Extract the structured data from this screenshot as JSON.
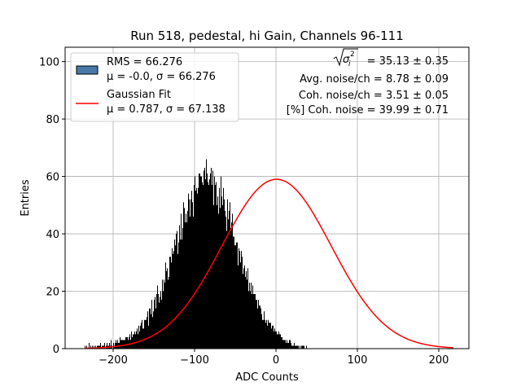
{
  "chart_data": {
    "type": "bar",
    "title": "Run 518, pedestal, hi Gain, Channels 96-111",
    "xlabel": "ADC Counts",
    "ylabel": "Entries",
    "xlim": [
      -259,
      237
    ],
    "ylim": [
      0,
      105
    ],
    "xticks": [
      -200,
      -100,
      0,
      100,
      200
    ],
    "yticks": [
      0,
      20,
      40,
      60,
      80,
      100
    ],
    "grid": true,
    "legend_position": "top-left",
    "hist": {
      "x_min": -235,
      "x_max": 218,
      "bin_width": 1,
      "color": "#000000",
      "counts": [
        1,
        0,
        1,
        0,
        0,
        2,
        0,
        1,
        0,
        1,
        0,
        1,
        0,
        1,
        0,
        1,
        1,
        1,
        1,
        2,
        0,
        1,
        1,
        1,
        2,
        0,
        1,
        2,
        1,
        1,
        2,
        1,
        3,
        1,
        0,
        2,
        1,
        2,
        3,
        2,
        3,
        2,
        2,
        4,
        3,
        3,
        3,
        3,
        3,
        3,
        4,
        4,
        4,
        3,
        4,
        5,
        3,
        6,
        4,
        5,
        5,
        6,
        5,
        6,
        7,
        5,
        8,
        6,
        8,
        9,
        10,
        7,
        7,
        10,
        10,
        10,
        11,
        13,
        8,
        14,
        14,
        12,
        17,
        11,
        13,
        17,
        18,
        14,
        19,
        22,
        19,
        16,
        18,
        20,
        17,
        24,
        20,
        24,
        23,
        30,
        27,
        28,
        24,
        25,
        32,
        32,
        30,
        35,
        33,
        34,
        38,
        36,
        40,
        41,
        33,
        37,
        43,
        38,
        47,
        38,
        42,
        51,
        49,
        44,
        47,
        44,
        48,
        54,
        52,
        46,
        52,
        55,
        51,
        46,
        57,
        60,
        55,
        56,
        54,
        56,
        61,
        61,
        60,
        60,
        58,
        57,
        62,
        63,
        59,
        66,
        61,
        58,
        57,
        59,
        61,
        63,
        57,
        62,
        50,
        60,
        57,
        58,
        50,
        53,
        47,
        56,
        49,
        60,
        53,
        50,
        56,
        52,
        48,
        46,
        41,
        52,
        45,
        48,
        51,
        42,
        44,
        47,
        39,
        39,
        36,
        36,
        37,
        37,
        29,
        35,
        34,
        30,
        34,
        32,
        26,
        28,
        29,
        25,
        27,
        24,
        28,
        20,
        23,
        20,
        23,
        19,
        22,
        19,
        19,
        19,
        17,
        17,
        14,
        17,
        15,
        15,
        14,
        12,
        10,
        10,
        13,
        10,
        9,
        10,
        8,
        10,
        9,
        9,
        9,
        7,
        8,
        8,
        6,
        7,
        6,
        6,
        5,
        5,
        6,
        5,
        5,
        4,
        4,
        3,
        3,
        3,
        3,
        2,
        3,
        2,
        2,
        3,
        3,
        2,
        1,
        1,
        1,
        2,
        1,
        1,
        1,
        1,
        1,
        0,
        1,
        0,
        1,
        1,
        1,
        1,
        0,
        0,
        1,
        0,
        0,
        0,
        0,
        0
      ]
    },
    "fit": {
      "mu": 0.787,
      "sigma": 67.138,
      "peak": 59,
      "color": "#ff0000"
    },
    "legend": [
      {
        "label_line1": "RMS = 66.276",
        "label_line2": "μ = -0.0, σ = 66.276",
        "color": "#4878a8"
      },
      {
        "label_line1": "Gaussian Fit",
        "label_line2": "μ = 0.787, σ = 67.138",
        "color": "#ff0000"
      }
    ],
    "annotations": {
      "sqrt_label": "= 35.13 ± 0.35",
      "avg_noise": "Avg. noise/ch = 8.78 ± 0.09",
      "coh_noise": "Coh. noise/ch = 3.51 ± 0.05",
      "pct_coh_noise": "[%] Coh. noise = 39.99 ± 0.71"
    }
  }
}
